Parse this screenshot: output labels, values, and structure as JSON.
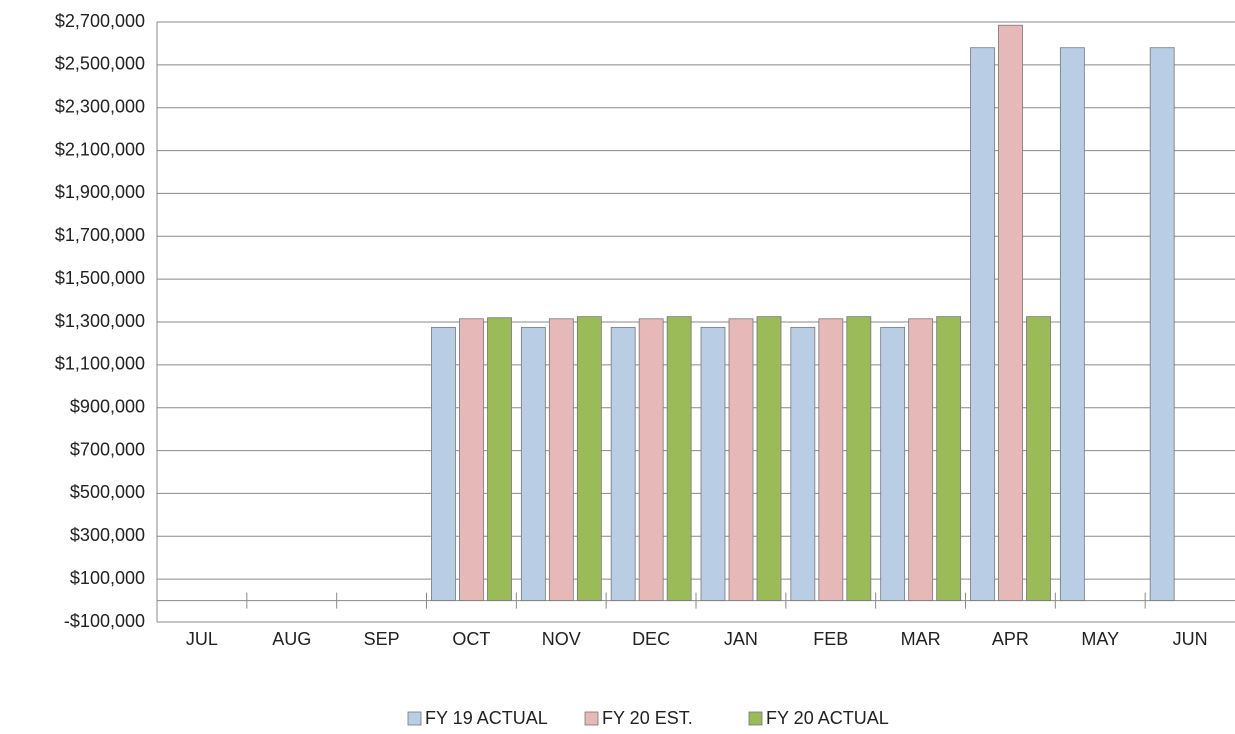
{
  "chart_data": {
    "type": "bar",
    "categories": [
      "JUL",
      "AUG",
      "SEP",
      "OCT",
      "NOV",
      "DEC",
      "JAN",
      "FEB",
      "MAR",
      "APR",
      "MAY",
      "JUN"
    ],
    "series": [
      {
        "name": "FY 19 ACTUAL",
        "color": "#b9cde5",
        "values": [
          null,
          null,
          null,
          1275000,
          1275000,
          1275000,
          1275000,
          1275000,
          1275000,
          2580000,
          2580000,
          2580000
        ]
      },
      {
        "name": "FY 20 EST.",
        "color": "#e6b9b8",
        "values": [
          null,
          null,
          null,
          1315000,
          1315000,
          1315000,
          1315000,
          1315000,
          1315000,
          2685000,
          null,
          null
        ]
      },
      {
        "name": "FY 20 ACTUAL",
        "color": "#9bbb59",
        "values": [
          null,
          null,
          null,
          1320000,
          1325000,
          1325000,
          1325000,
          1325000,
          1325000,
          1325000,
          null,
          null
        ]
      }
    ],
    "ylim": [
      -100000,
      2700000
    ],
    "yticks": [
      {
        "value": -100000,
        "label": "-$100,000"
      },
      {
        "value": 100000,
        "label": "$100,000"
      },
      {
        "value": 300000,
        "label": "$300,000"
      },
      {
        "value": 500000,
        "label": "$500,000"
      },
      {
        "value": 700000,
        "label": "$700,000"
      },
      {
        "value": 900000,
        "label": "$900,000"
      },
      {
        "value": 1100000,
        "label": "$1,100,000"
      },
      {
        "value": 1300000,
        "label": "$1,300,000"
      },
      {
        "value": 1500000,
        "label": "$1,500,000"
      },
      {
        "value": 1700000,
        "label": "$1,700,000"
      },
      {
        "value": 1900000,
        "label": "$1,900,000"
      },
      {
        "value": 2100000,
        "label": "$2,100,000"
      },
      {
        "value": 2300000,
        "label": "$2,300,000"
      },
      {
        "value": 2500000,
        "label": "$2,500,000"
      },
      {
        "value": 2700000,
        "label": "$2,700,000"
      }
    ],
    "grid": true,
    "legend": "bottom"
  }
}
